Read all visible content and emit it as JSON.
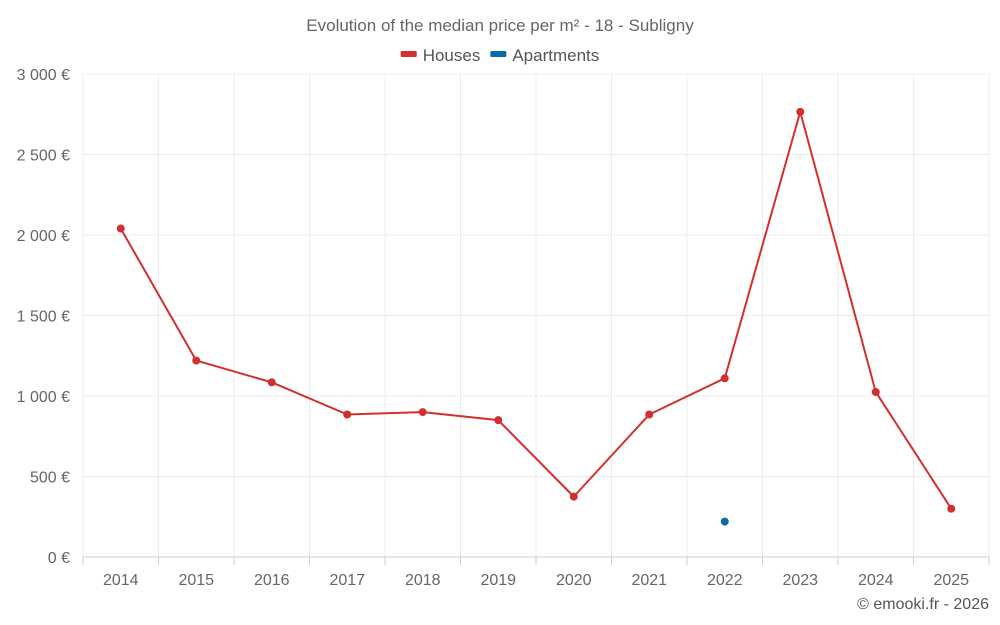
{
  "chart_data": {
    "type": "line",
    "title": "Evolution of the median price per m² - 18 - Subligny",
    "categories": [
      "2014",
      "2015",
      "2016",
      "2017",
      "2018",
      "2019",
      "2020",
      "2021",
      "2022",
      "2023",
      "2024",
      "2025"
    ],
    "series": [
      {
        "name": "Houses",
        "color": "#d32f2f",
        "values": [
          2040,
          1220,
          1085,
          885,
          900,
          850,
          375,
          885,
          1110,
          2765,
          1025,
          300
        ]
      },
      {
        "name": "Apartments",
        "color": "#0d6aa8",
        "values": [
          null,
          null,
          null,
          null,
          null,
          null,
          null,
          null,
          220,
          null,
          null,
          null
        ]
      }
    ],
    "ylim": [
      0,
      3000
    ],
    "yticks": [
      0,
      500,
      1000,
      1500,
      2000,
      2500,
      3000
    ],
    "ytick_labels": [
      "0 €",
      "500 €",
      "1 000 €",
      "1 500 €",
      "2 000 €",
      "2 500 €",
      "3 000 €"
    ],
    "grid": true,
    "legend_position": "top-center"
  },
  "footer": {
    "copyright": "© emooki.fr - 2026"
  }
}
